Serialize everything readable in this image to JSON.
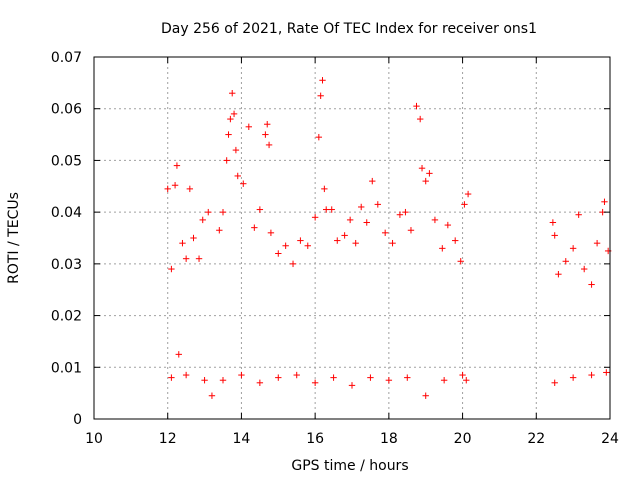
{
  "chart_data": {
    "type": "scatter",
    "title": "Day 256 of 2021, Rate Of TEC Index for receiver ons1",
    "xlabel": "GPS time / hours",
    "ylabel": "ROTI / TECUs",
    "xlim": [
      10,
      24
    ],
    "ylim": [
      0,
      0.07
    ],
    "xticks": [
      "10",
      "12",
      "14",
      "16",
      "18",
      "20",
      "22",
      "24"
    ],
    "yticks": [
      "0",
      "0.01",
      "0.02",
      "0.03",
      "0.04",
      "0.05",
      "0.06",
      "0.07"
    ],
    "grid": true,
    "marker": "+",
    "color": "#ff0000",
    "series": [
      {
        "points": [
          [
            12.0,
            0.0445
          ],
          [
            12.1,
            0.029
          ],
          [
            12.2,
            0.0452
          ],
          [
            12.25,
            0.049
          ],
          [
            12.3,
            0.0125
          ],
          [
            12.4,
            0.034
          ],
          [
            12.5,
            0.031
          ],
          [
            12.6,
            0.0445
          ],
          [
            12.7,
            0.035
          ],
          [
            12.85,
            0.031
          ],
          [
            12.95,
            0.0385
          ],
          [
            13.1,
            0.04
          ],
          [
            13.2,
            0.0045
          ],
          [
            13.4,
            0.0365
          ],
          [
            13.5,
            0.04
          ],
          [
            13.6,
            0.05
          ],
          [
            13.65,
            0.055
          ],
          [
            13.7,
            0.058
          ],
          [
            13.75,
            0.063
          ],
          [
            13.8,
            0.059
          ],
          [
            13.85,
            0.052
          ],
          [
            13.9,
            0.047
          ],
          [
            14.05,
            0.0455
          ],
          [
            14.2,
            0.0565
          ],
          [
            14.35,
            0.037
          ],
          [
            14.5,
            0.0405
          ],
          [
            14.65,
            0.055
          ],
          [
            14.7,
            0.057
          ],
          [
            14.75,
            0.053
          ],
          [
            14.8,
            0.036
          ],
          [
            15.0,
            0.032
          ],
          [
            15.2,
            0.0335
          ],
          [
            15.4,
            0.03
          ],
          [
            15.6,
            0.0345
          ],
          [
            15.8,
            0.0335
          ],
          [
            16.0,
            0.039
          ],
          [
            16.1,
            0.0545
          ],
          [
            16.15,
            0.0625
          ],
          [
            16.2,
            0.0655
          ],
          [
            16.25,
            0.0445
          ],
          [
            16.3,
            0.0405
          ],
          [
            16.45,
            0.0405
          ],
          [
            16.6,
            0.0345
          ],
          [
            16.8,
            0.0355
          ],
          [
            16.95,
            0.0385
          ],
          [
            17.1,
            0.034
          ],
          [
            17.25,
            0.041
          ],
          [
            17.4,
            0.038
          ],
          [
            17.55,
            0.046
          ],
          [
            17.7,
            0.0415
          ],
          [
            17.9,
            0.036
          ],
          [
            18.1,
            0.034
          ],
          [
            18.3,
            0.0395
          ],
          [
            18.45,
            0.04
          ],
          [
            18.6,
            0.0365
          ],
          [
            18.75,
            0.0605
          ],
          [
            18.85,
            0.058
          ],
          [
            18.9,
            0.0485
          ],
          [
            19.0,
            0.046
          ],
          [
            19.1,
            0.0475
          ],
          [
            19.25,
            0.0385
          ],
          [
            19.45,
            0.033
          ],
          [
            19.6,
            0.0375
          ],
          [
            19.8,
            0.0345
          ],
          [
            19.95,
            0.0305
          ],
          [
            20.05,
            0.0415
          ],
          [
            20.1,
            0.0075
          ],
          [
            20.15,
            0.0435
          ],
          [
            12.1,
            0.008
          ],
          [
            12.5,
            0.0085
          ],
          [
            13.0,
            0.0075
          ],
          [
            13.5,
            0.0075
          ],
          [
            14.0,
            0.0085
          ],
          [
            14.5,
            0.007
          ],
          [
            15.0,
            0.008
          ],
          [
            15.5,
            0.0085
          ],
          [
            16.0,
            0.007
          ],
          [
            16.5,
            0.008
          ],
          [
            17.0,
            0.0065
          ],
          [
            17.5,
            0.008
          ],
          [
            18.0,
            0.0075
          ],
          [
            18.5,
            0.008
          ],
          [
            19.0,
            0.0045
          ],
          [
            19.5,
            0.0075
          ],
          [
            20.0,
            0.0085
          ],
          [
            22.45,
            0.038
          ],
          [
            22.5,
            0.0355
          ],
          [
            22.6,
            0.028
          ],
          [
            22.8,
            0.0305
          ],
          [
            23.0,
            0.033
          ],
          [
            23.15,
            0.0395
          ],
          [
            23.3,
            0.029
          ],
          [
            23.5,
            0.026
          ],
          [
            23.65,
            0.034
          ],
          [
            23.8,
            0.04
          ],
          [
            23.85,
            0.042
          ],
          [
            23.95,
            0.0325
          ],
          [
            22.5,
            0.007
          ],
          [
            23.0,
            0.008
          ],
          [
            23.5,
            0.0085
          ],
          [
            23.9,
            0.009
          ]
        ]
      }
    ]
  }
}
